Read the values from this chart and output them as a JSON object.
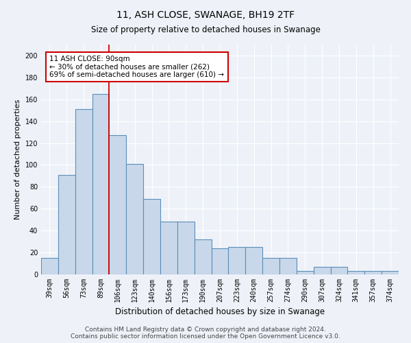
{
  "title": "11, ASH CLOSE, SWANAGE, BH19 2TF",
  "subtitle": "Size of property relative to detached houses in Swanage",
  "xlabel": "Distribution of detached houses by size in Swanage",
  "ylabel": "Number of detached properties",
  "bar_heights": [
    15,
    91,
    151,
    165,
    127,
    101,
    69,
    48,
    48,
    32,
    24,
    25,
    25,
    15,
    15,
    3,
    7,
    7,
    3,
    3,
    3
  ],
  "x_labels": [
    "39sqm",
    "56sqm",
    "73sqm",
    "89sqm",
    "106sqm",
    "123sqm",
    "140sqm",
    "156sqm",
    "173sqm",
    "190sqm",
    "207sqm",
    "223sqm",
    "240sqm",
    "257sqm",
    "274sqm",
    "290sqm",
    "307sqm",
    "324sqm",
    "341sqm",
    "357sqm",
    "374sqm"
  ],
  "bar_color": "#c8d8ea",
  "bar_edge_color": "#5b8db8",
  "bar_edge_width": 0.8,
  "background_color": "#eef2f8",
  "plot_bg_color": "#eef2f8",
  "red_line_x": 3.5,
  "red_line_color": "#cc0000",
  "annotation_text": "11 ASH CLOSE: 90sqm\n← 30% of detached houses are smaller (262)\n69% of semi-detached houses are larger (610) →",
  "annotation_box_color": "white",
  "annotation_box_edge_color": "#cc0000",
  "ylim": [
    0,
    210
  ],
  "yticks": [
    0,
    20,
    40,
    60,
    80,
    100,
    120,
    140,
    160,
    180,
    200
  ],
  "footer": "Contains HM Land Registry data © Crown copyright and database right 2024.\nContains public sector information licensed under the Open Government Licence v3.0.",
  "title_fontsize": 10,
  "subtitle_fontsize": 8.5,
  "ylabel_fontsize": 8,
  "xlabel_fontsize": 8.5,
  "tick_fontsize": 7,
  "annotation_fontsize": 7.5,
  "footer_fontsize": 6.5
}
